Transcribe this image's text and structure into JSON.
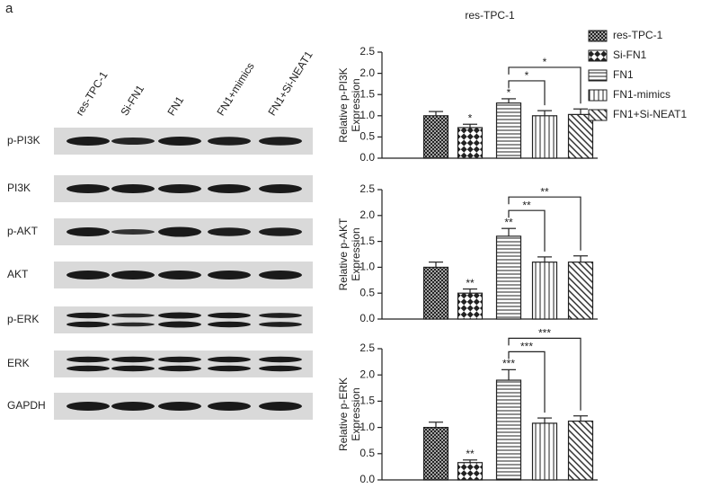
{
  "panel_label": "a",
  "blot": {
    "lanes": [
      "res-TPC-1",
      "Si-FN1",
      "FN1",
      "FN1+mimics",
      "FN1+Si-NEAT1"
    ],
    "rows": [
      "p-PI3K",
      "PI3K",
      "p-AKT",
      "AKT",
      "p-ERK",
      "ERK",
      "GAPDH"
    ]
  },
  "chart_data": [
    {
      "type": "bar",
      "title": "res-TPC-1",
      "ylabel": [
        "Relative p-PI3K",
        "Expression"
      ],
      "categories": [
        "res-TPC-1",
        "Si-FN1",
        "FN1",
        "FN1-mimics",
        "FN1+Si-NEAT1"
      ],
      "values": [
        1.0,
        0.72,
        1.3,
        1.0,
        1.03
      ],
      "errors": [
        0.1,
        0.08,
        0.1,
        0.12,
        0.13
      ],
      "ylim": [
        0,
        2.5
      ],
      "yticks": [
        {
          "value": 0,
          "label": "0.0"
        },
        0.5,
        {
          "value": 1,
          "label": "1.0"
        },
        1.5,
        {
          "value": 2,
          "label": "2.0"
        },
        2.5
      ],
      "annotations": [
        {
          "bar": 1,
          "text": "*"
        },
        {
          "bar": 2,
          "text": "*"
        }
      ],
      "brackets": [
        {
          "from": 2,
          "to": 3,
          "text": "*"
        },
        {
          "from": 2,
          "to": 4,
          "text": "*"
        }
      ]
    },
    {
      "type": "bar",
      "ylabel": [
        "Relative p-AKT",
        "Expression"
      ],
      "values": [
        1.0,
        0.5,
        1.6,
        1.1,
        1.1
      ],
      "errors": [
        0.1,
        0.08,
        0.15,
        0.1,
        0.12
      ],
      "ylim": [
        0,
        2.5
      ],
      "yticks": [
        {
          "value": 0,
          "label": "0.0"
        },
        0.5,
        {
          "value": 1,
          "label": "1.0"
        },
        1.5,
        {
          "value": 2,
          "label": "2.0"
        },
        2.5
      ],
      "annotations": [
        {
          "bar": 1,
          "text": "**"
        },
        {
          "bar": 2,
          "text": "**"
        }
      ],
      "brackets": [
        {
          "from": 2,
          "to": 3,
          "text": "**"
        },
        {
          "from": 2,
          "to": 4,
          "text": "**"
        }
      ]
    },
    {
      "type": "bar",
      "ylabel": [
        "Relative p-ERK",
        "Expression"
      ],
      "values": [
        1.0,
        0.33,
        1.9,
        1.08,
        1.12
      ],
      "errors": [
        0.1,
        0.05,
        0.2,
        0.1,
        0.1
      ],
      "ylim": [
        0,
        2.5
      ],
      "yticks": [
        {
          "value": 0,
          "label": "0.0"
        },
        0.5,
        {
          "value": 1,
          "label": "1.0"
        },
        1.5,
        {
          "value": 2,
          "label": "2.0"
        },
        2.5
      ],
      "annotations": [
        {
          "bar": 1,
          "text": "**"
        },
        {
          "bar": 2,
          "text": "***"
        }
      ],
      "brackets": [
        {
          "from": 2,
          "to": 3,
          "text": "***"
        },
        {
          "from": 2,
          "to": 4,
          "text": "***"
        }
      ]
    }
  ]
}
